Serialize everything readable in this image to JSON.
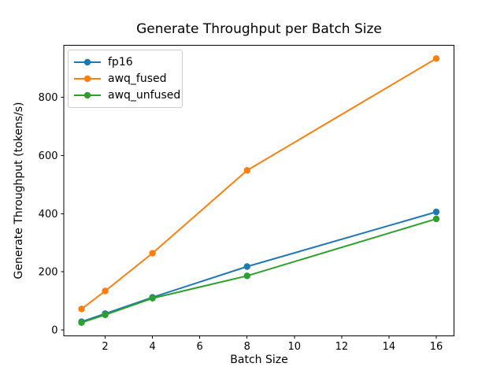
{
  "chart_data": {
    "type": "line",
    "title": "Generate Throughput per Batch Size",
    "xlabel": "Batch Size",
    "ylabel": "Generate Throughput (tokens/s)",
    "x": [
      1,
      2,
      4,
      8,
      16
    ],
    "series": [
      {
        "name": "fp16",
        "color": "#1f77b4",
        "values": [
          28,
          56,
          112,
          218,
          406
        ]
      },
      {
        "name": "awq_fused",
        "color": "#ff7f0e",
        "values": [
          72,
          134,
          264,
          549,
          934
        ]
      },
      {
        "name": "awq_unfused",
        "color": "#2ca02c",
        "values": [
          25,
          52,
          109,
          186,
          382
        ]
      }
    ],
    "xticks": [
      2,
      4,
      6,
      8,
      10,
      12,
      14,
      16
    ],
    "yticks": [
      0,
      200,
      400,
      600,
      800
    ],
    "xlim": [
      0.25,
      16.75
    ],
    "ylim": [
      -20.5,
      979.5
    ],
    "grid": false,
    "marker": "o",
    "legend_position": "upper left"
  }
}
